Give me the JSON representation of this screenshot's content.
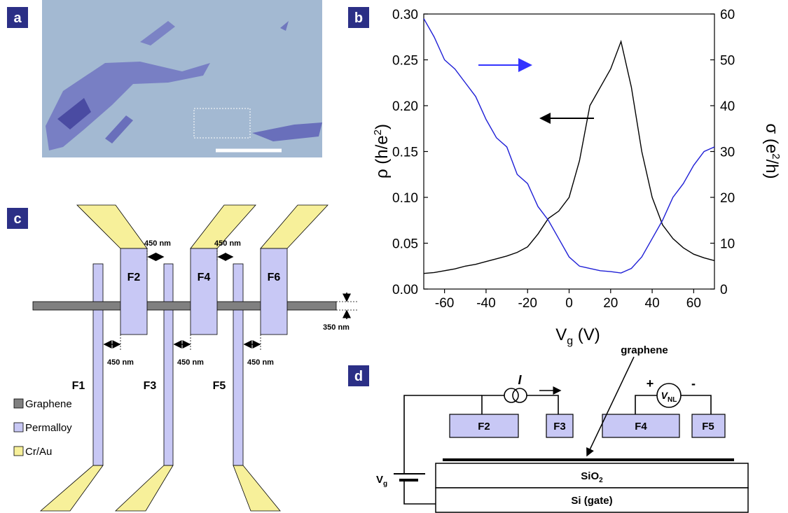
{
  "panel_labels": [
    "a",
    "b",
    "c",
    "d"
  ],
  "chart_data": {
    "type": "line",
    "x": [
      -70,
      -65,
      -60,
      -55,
      -50,
      -45,
      -40,
      -35,
      -30,
      -25,
      -20,
      -15,
      -10,
      -5,
      0,
      5,
      10,
      15,
      20,
      25,
      30,
      35,
      40,
      45,
      50,
      55,
      60,
      65,
      70
    ],
    "series": [
      {
        "color": "#000000",
        "values": [
          0.017,
          0.018,
          0.02,
          0.022,
          0.025,
          0.027,
          0.03,
          0.033,
          0.036,
          0.04,
          0.046,
          0.06,
          0.077,
          0.085,
          0.1,
          0.14,
          0.2,
          0.22,
          0.24,
          0.27,
          0.22,
          0.15,
          0.1,
          0.07,
          0.055,
          0.045,
          0.038,
          0.034,
          0.031
        ]
      },
      {
        "color": "#1f1fd6",
        "axis": "y2",
        "values": [
          59,
          55,
          50,
          48,
          45,
          42,
          37,
          33,
          31,
          25,
          23,
          18,
          15,
          11,
          7,
          5,
          4.5,
          4,
          3.8,
          3.5,
          4.5,
          7,
          11,
          15,
          20,
          23,
          27,
          30,
          31
        ]
      }
    ],
    "xlabel": {
      "main": "V",
      "sub": "g",
      "end": " (V)"
    },
    "ylabel": {
      "main": "ρ (h/e",
      "sup": "2",
      "end": ")"
    },
    "y2label": {
      "main": "σ (e",
      "sup": "2",
      "end": "/h)"
    },
    "xlim": [
      -70,
      70
    ],
    "ylim": [
      0,
      0.3
    ],
    "y2lim": [
      0,
      60
    ],
    "xticks": [
      -60,
      -40,
      -20,
      0,
      20,
      40,
      60
    ],
    "yticks": [
      {
        "value": 0,
        "label": "0.00"
      },
      {
        "value": 0.05,
        "label": "0.05"
      },
      {
        "value": 0.1,
        "label": "0.10"
      },
      {
        "value": 0.15,
        "label": "0.15"
      },
      {
        "value": 0.2,
        "label": "0.20"
      },
      {
        "value": 0.25,
        "label": "0.25"
      },
      {
        "value": 0.3,
        "label": "0.30"
      }
    ],
    "y2ticks": [
      0,
      10,
      20,
      30,
      40,
      50,
      60
    ]
  },
  "schematic": {
    "fingers": [
      "F1",
      "F2",
      "F3",
      "F4",
      "F5",
      "F6"
    ],
    "spacings": [
      "450 nm",
      "450 nm",
      "450 nm",
      "450 nm",
      "450 nm"
    ],
    "width": "350 nm",
    "legend": [
      "Graphene",
      "Permalloy",
      "Cr/Au"
    ]
  },
  "circuit": {
    "contacts": [
      "F2",
      "F3",
      "F4",
      "F5"
    ],
    "graphene": "graphene",
    "current": "I",
    "voltage": {
      "main": "V",
      "sub": "NL"
    },
    "plus": "+",
    "minus": "-",
    "oxide": {
      "main": "SiO",
      "sub": "2"
    },
    "gate": "Si (gate)",
    "gate_voltage": {
      "main": "V",
      "sub": "g"
    }
  }
}
